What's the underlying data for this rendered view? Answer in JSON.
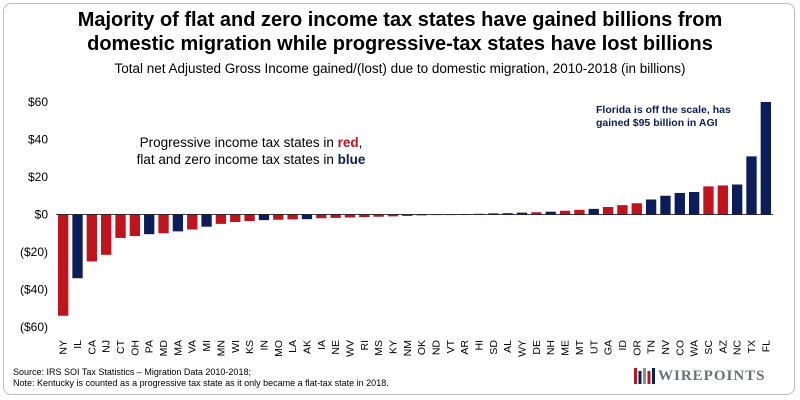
{
  "header": {
    "title_line1": "Majority of flat and zero income tax states have gained billions from",
    "title_line2": "domestic migration while progressive-tax states have lost billions",
    "subtitle": "Total net Adjusted Gross Income gained/(lost) due to domestic migration, 2010-2018 (in billions)"
  },
  "legend_note": {
    "line1_prefix": "Progressive income tax states in ",
    "line1_color_word": "red",
    "line1_suffix": ",",
    "line2_prefix": "flat and zero income tax states in ",
    "line2_color_word": "blue"
  },
  "annotation": {
    "line1": "Florida is off the scale, has",
    "line2": "gained $95 billion in AGI"
  },
  "footer": {
    "source": "Source: IRS SOI Tax Statistics – Migration Data 2010-2018;",
    "note": "Note: Kentucky is counted as a progressive tax state as it only became a flat-tax state in 2018."
  },
  "logo": {
    "text": "WIREPOINTS"
  },
  "colors": {
    "progressive": "#c0131e",
    "flat": "#0b1d5a",
    "axis": "#000000",
    "logo_stripes": [
      "#c0131e",
      "#0b1d5a",
      "#8a8f99",
      "#c0131e",
      "#0b1d5a"
    ]
  },
  "chart_data": {
    "type": "bar",
    "ylim": [
      -60,
      60
    ],
    "yticks": [
      -60,
      -40,
      -20,
      0,
      20,
      40,
      60
    ],
    "ytick_labels": [
      "($60)",
      "($40)",
      "($20)",
      "$0",
      "$20",
      "$40",
      "$60"
    ],
    "grid": false,
    "categories": [
      "NY",
      "IL",
      "CA",
      "NJ",
      "CT",
      "OH",
      "PA",
      "MD",
      "MA",
      "VA",
      "MI",
      "MN",
      "WI",
      "KS",
      "IN",
      "MO",
      "LA",
      "AK",
      "IA",
      "NE",
      "WV",
      "RI",
      "MS",
      "KY",
      "NM",
      "OK",
      "ND",
      "VT",
      "AR",
      "HI",
      "SD",
      "AL",
      "WY",
      "DE",
      "NH",
      "ME",
      "MT",
      "UT",
      "GA",
      "ID",
      "OR",
      "TN",
      "NV",
      "CO",
      "WA",
      "SC",
      "AZ",
      "NC",
      "TX",
      "FL"
    ],
    "values": [
      -54,
      -34,
      -25,
      -21.5,
      -12.5,
      -11.5,
      -10.5,
      -10,
      -9,
      -8,
      -6.5,
      -5,
      -4,
      -3.5,
      -3,
      -2.8,
      -2.6,
      -2.5,
      -2,
      -1.8,
      -1.6,
      -1.4,
      -1.2,
      -1,
      -0.8,
      -0.5,
      -0.2,
      0,
      0.2,
      0.4,
      0.6,
      0.8,
      1,
      1.2,
      1.5,
      2,
      2.5,
      3,
      4,
      5,
      6,
      8,
      10,
      11.5,
      12,
      15,
      15.5,
      16,
      31,
      60
    ],
    "groups": [
      "progressive",
      "flat",
      "progressive",
      "progressive",
      "progressive",
      "progressive",
      "flat",
      "progressive",
      "flat",
      "progressive",
      "flat",
      "progressive",
      "progressive",
      "progressive",
      "flat",
      "progressive",
      "progressive",
      "flat",
      "progressive",
      "progressive",
      "progressive",
      "progressive",
      "progressive",
      "progressive",
      "progressive",
      "progressive",
      "progressive",
      "progressive",
      "progressive",
      "progressive",
      "flat",
      "progressive",
      "flat",
      "progressive",
      "flat",
      "progressive",
      "progressive",
      "flat",
      "progressive",
      "progressive",
      "progressive",
      "flat",
      "flat",
      "flat",
      "flat",
      "progressive",
      "progressive",
      "flat",
      "flat",
      "flat"
    ]
  }
}
